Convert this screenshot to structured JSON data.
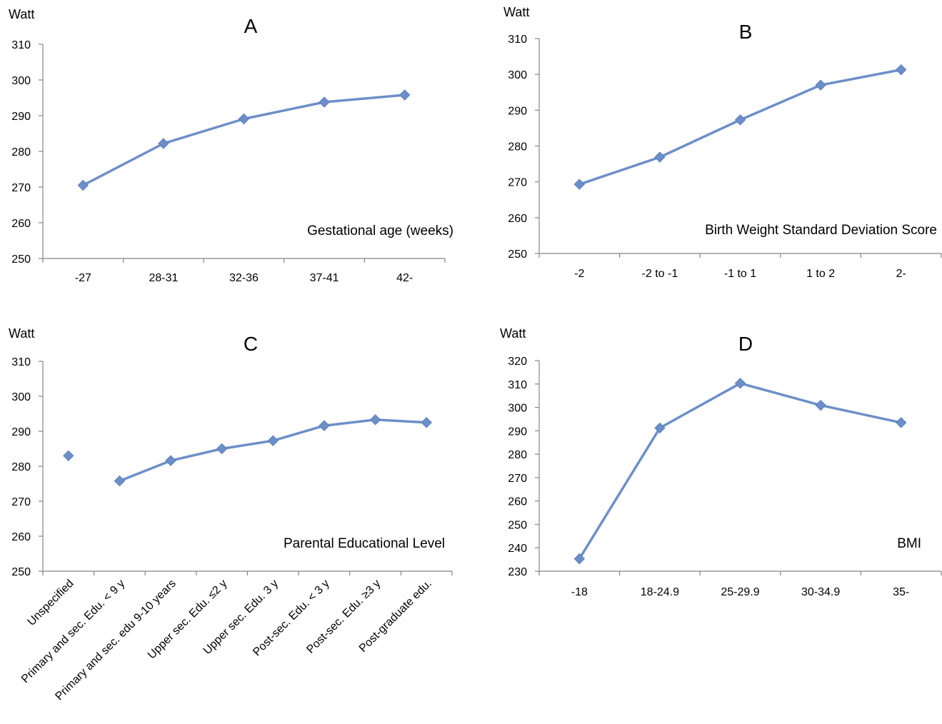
{
  "chart_data": [
    {
      "type": "line",
      "panel_label": "A",
      "ylabel": "Watt",
      "annotation": "Gestational age (weeks)",
      "categories": [
        "-27",
        "28-31",
        "32-36",
        "37-41",
        "42-"
      ],
      "series": [
        {
          "values": [
            270.5,
            282.2,
            289.1,
            293.8,
            295.8
          ]
        }
      ],
      "ylim": [
        250,
        310
      ],
      "yticks": [
        250,
        260,
        270,
        280,
        290,
        300,
        310
      ],
      "grid": false,
      "color": "#6d8fc8"
    },
    {
      "type": "line",
      "panel_label": "B",
      "ylabel": "Watt",
      "annotation": "Birth Weight Standard Deviation Score",
      "categories": [
        "-2",
        "-2 to -1",
        "-1 to 1",
        "1 to 2",
        "2-"
      ],
      "series": [
        {
          "values": [
            269.3,
            276.9,
            287.3,
            297.0,
            301.3
          ]
        }
      ],
      "ylim": [
        250,
        310
      ],
      "yticks": [
        250,
        260,
        270,
        280,
        290,
        300,
        310
      ],
      "grid": false,
      "color": "#6d8fc8"
    },
    {
      "type": "line",
      "panel_label": "C",
      "ylabel": "Watt",
      "annotation": "Parental Educational Level",
      "categories": [
        "Unspecified",
        "Primary and sec. Edu. < 9 y",
        "Primary and sec. edu 9-10 years",
        "Upper sec. Edu. ≤2 y",
        "Upper sec. Edu. 3 y",
        "Post-sec. Edu. < 3 y",
        "Post-sec. Edu. ≥3 y",
        "Post-graduate edu."
      ],
      "series": [
        {
          "values": [
            283.0,
            275.8,
            281.6,
            285.0,
            287.3,
            291.6,
            293.3,
            292.5
          ]
        }
      ],
      "connected_from_index": 1,
      "ylim": [
        250,
        310
      ],
      "yticks": [
        250,
        260,
        270,
        280,
        290,
        300,
        310
      ],
      "grid": false,
      "color": "#6d8fc8"
    },
    {
      "type": "line",
      "panel_label": "D",
      "ylabel": "Watt",
      "annotation": "BMI",
      "categories": [
        "-18",
        "18-24.9",
        "25-29.9",
        "30-34.9",
        "35-"
      ],
      "series": [
        {
          "values": [
            235.3,
            291.2,
            310.3,
            300.9,
            293.5
          ]
        }
      ],
      "ylim": [
        230,
        320
      ],
      "yticks": [
        230,
        240,
        250,
        260,
        270,
        280,
        290,
        300,
        310,
        320
      ],
      "grid": false,
      "color": "#6d8fc8"
    }
  ]
}
